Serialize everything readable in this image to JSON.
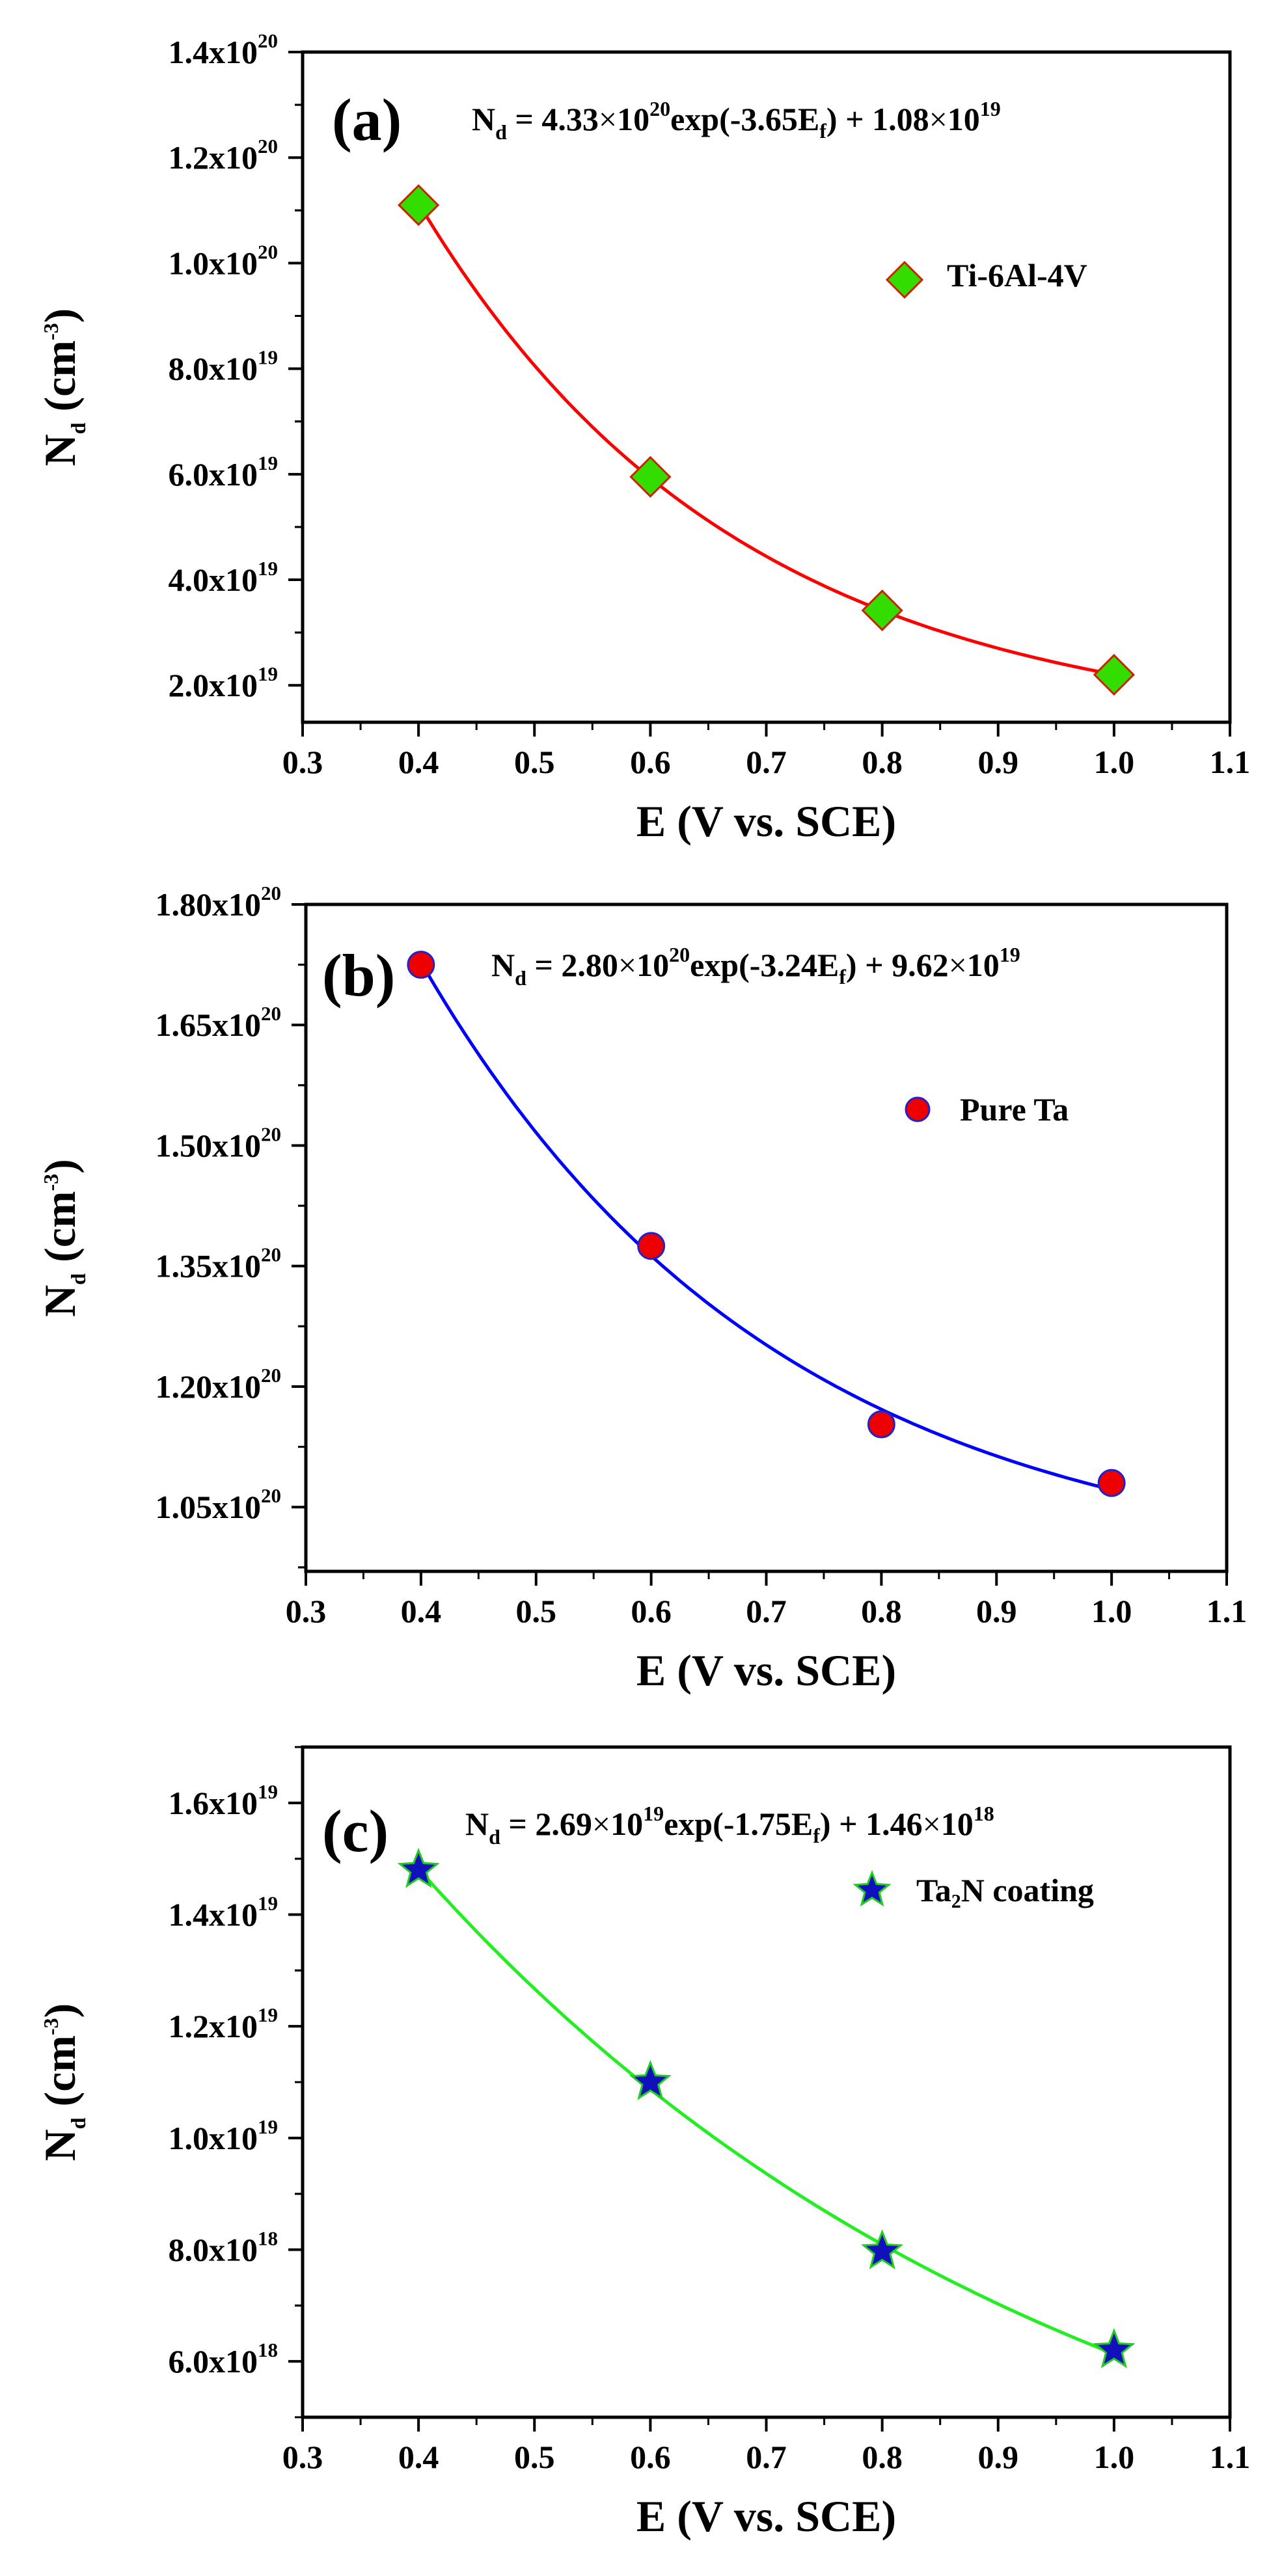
{
  "chart_data": [
    {
      "type": "scatter",
      "panel_label": "(a)",
      "equation": {
        "lhs": "N",
        "lhs_sub": "d",
        "coef1": " = 4.33",
        "times1": "×",
        "base1": "10",
        "exp1": "20",
        "fn": "exp(-3.65E",
        "fn_sub": "f",
        "tail": ") + 1.08",
        "times2": "×",
        "base2": "10",
        "exp2": "19"
      },
      "legend": {
        "label": "Ti-6Al-4V",
        "position": "top-right"
      },
      "marker": {
        "shape": "diamond",
        "fill": "#33dd00",
        "edge": "#cc2200"
      },
      "curve_color": "#ff0000",
      "fit": {
        "a": 4.33e+20,
        "k": -3.65,
        "c": 1.08e+19
      },
      "x": [
        0.4,
        0.6,
        0.8,
        1.0
      ],
      "y": [
        1.11e+20,
        5.95e+19,
        3.42e+19,
        2.2e+19
      ],
      "xlim": [
        0.3,
        1.1
      ],
      "ylim": [
        1.3e+19,
        1.4e+20
      ],
      "xticks": [
        "0.3",
        "0.4",
        "0.5",
        "0.6",
        "0.7",
        "0.8",
        "0.9",
        "1.0",
        "1.1"
      ],
      "yticks": [
        {
          "value": 2e+19,
          "mantissa": "2.0x10",
          "exponent": "19"
        },
        {
          "value": 4e+19,
          "mantissa": "4.0x10",
          "exponent": "19"
        },
        {
          "value": 6e+19,
          "mantissa": "6.0x10",
          "exponent": "19"
        },
        {
          "value": 8e+19,
          "mantissa": "8.0x10",
          "exponent": "19"
        },
        {
          "value": 1e+20,
          "mantissa": "1.0x10",
          "exponent": "20"
        },
        {
          "value": 1.2e+20,
          "mantissa": "1.2x10",
          "exponent": "20"
        },
        {
          "value": 1.4e+20,
          "mantissa": "1.4x10",
          "exponent": "20"
        }
      ],
      "xlabel": "E (V vs. SCE)",
      "ylabel": {
        "main": "N",
        "sub": "d",
        "unit": " (cm",
        "exp": "-3",
        "close": ")"
      }
    },
    {
      "type": "scatter",
      "panel_label": "(b)",
      "equation": {
        "lhs": "N",
        "lhs_sub": "d",
        "coef1": " = 2.80",
        "times1": "×",
        "base1": "10",
        "exp1": "20",
        "fn": "exp(-3.24E",
        "fn_sub": "f",
        "tail": ") + 9.62",
        "times2": "×",
        "base2": "10",
        "exp2": "19"
      },
      "legend": {
        "label": "Pure Ta",
        "position": "top-right"
      },
      "marker": {
        "shape": "circle",
        "fill": "#ee0000",
        "edge": "#2222cc"
      },
      "curve_color": "#0000ff",
      "fit": {
        "a": 2.8e+20,
        "k": -3.24,
        "c": 9.62e+19
      },
      "x": [
        0.4,
        0.6,
        0.8,
        1.0
      ],
      "y": [
        1.725e+20,
        1.375e+20,
        1.153e+20,
        1.08e+20
      ],
      "xlim": [
        0.3,
        1.1
      ],
      "ylim": [
        9.7e+19,
        1.8e+20
      ],
      "xticks": [
        "0.3",
        "0.4",
        "0.5",
        "0.6",
        "0.7",
        "0.8",
        "0.9",
        "1.0",
        "1.1"
      ],
      "yticks": [
        {
          "value": 1.05e+20,
          "mantissa": "1.05x10",
          "exponent": "20"
        },
        {
          "value": 1.2e+20,
          "mantissa": "1.20x10",
          "exponent": "20"
        },
        {
          "value": 1.35e+20,
          "mantissa": "1.35x10",
          "exponent": "20"
        },
        {
          "value": 1.5e+20,
          "mantissa": "1.50x10",
          "exponent": "20"
        },
        {
          "value": 1.65e+20,
          "mantissa": "1.65x10",
          "exponent": "20"
        },
        {
          "value": 1.8e+20,
          "mantissa": "1.80x10",
          "exponent": "20"
        }
      ],
      "xlabel": "E (V vs. SCE)",
      "ylabel": {
        "main": "N",
        "sub": "d",
        "unit": " (cm",
        "exp": "-3",
        "close": ")"
      }
    },
    {
      "type": "scatter",
      "panel_label": "(c)",
      "equation": {
        "lhs": "N",
        "lhs_sub": "d",
        "coef1": " = 2.69",
        "times1": "×",
        "base1": "10",
        "exp1": "19",
        "fn": "exp(-1.75E",
        "fn_sub": "f",
        "tail": ") + 1.46",
        "times2": "×",
        "base2": "10",
        "exp2": "18"
      },
      "legend": {
        "label": "Ta₂N coating",
        "position": "top-right"
      },
      "marker": {
        "shape": "star",
        "fill": "#1111bb",
        "edge": "#22cc22"
      },
      "curve_color": "#22ee22",
      "fit": {
        "a": 2.69e+19,
        "k": -1.75,
        "c": 1.46e+18
      },
      "x": [
        0.4,
        0.6,
        0.8,
        1.0
      ],
      "y": [
        1.48e+19,
        1.1e+19,
        7.97e+18,
        6.2e+18
      ],
      "xlim": [
        0.3,
        1.1
      ],
      "ylim": [
        5e+18,
        1.7e+19
      ],
      "xticks": [
        "0.3",
        "0.4",
        "0.5",
        "0.6",
        "0.7",
        "0.8",
        "0.9",
        "1.0",
        "1.1"
      ],
      "yticks": [
        {
          "value": 6e+18,
          "mantissa": "6.0x10",
          "exponent": "18"
        },
        {
          "value": 8e+18,
          "mantissa": "8.0x10",
          "exponent": "18"
        },
        {
          "value": 1e+19,
          "mantissa": "1.0x10",
          "exponent": "19"
        },
        {
          "value": 1.2e+19,
          "mantissa": "1.2x10",
          "exponent": "19"
        },
        {
          "value": 1.4e+19,
          "mantissa": "1.4x10",
          "exponent": "19"
        },
        {
          "value": 1.6e+19,
          "mantissa": "1.6x10",
          "exponent": "19"
        }
      ],
      "xlabel": "E (V vs. SCE)",
      "ylabel": {
        "main": "N",
        "sub": "d",
        "unit": " (cm",
        "exp": "-3",
        "close": ")"
      }
    }
  ]
}
